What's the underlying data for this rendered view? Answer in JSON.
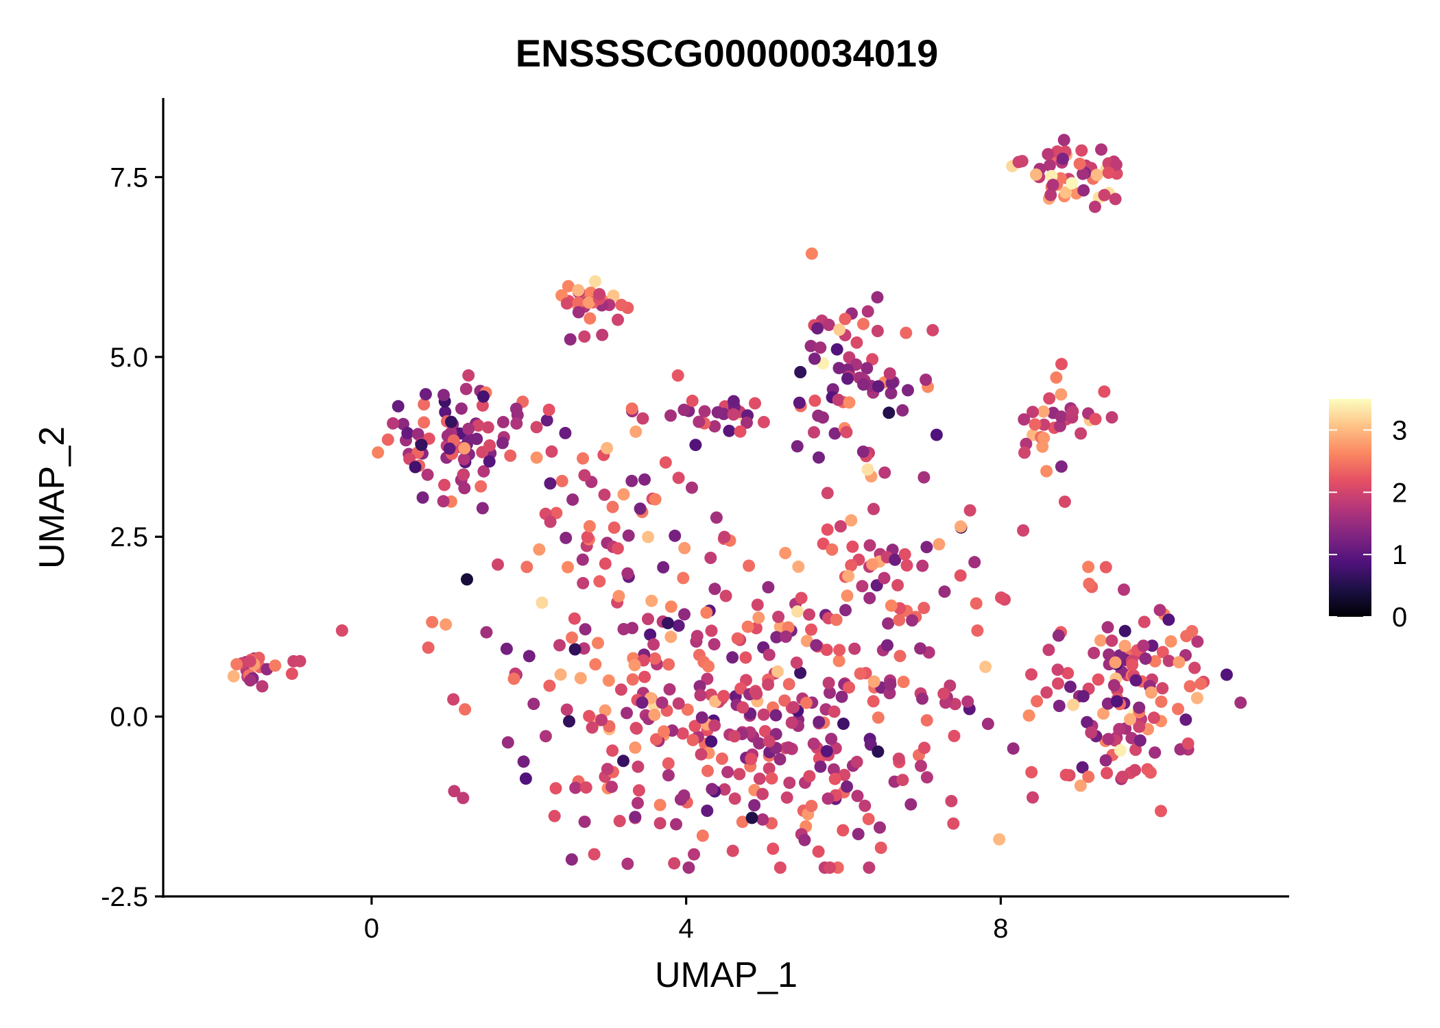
{
  "chart_data": {
    "type": "scatter",
    "title": "ENSSSCG00000034019",
    "xlabel": "UMAP_1",
    "ylabel": "UMAP_2",
    "xlim": [
      -2.65,
      11.65
    ],
    "ylim": [
      -2.5,
      8.6
    ],
    "x_ticks": [
      0,
      4,
      8
    ],
    "x_tick_labels": [
      "0",
      "4",
      "8"
    ],
    "y_ticks": [
      -2.5,
      0.0,
      2.5,
      5.0,
      7.5
    ],
    "y_tick_labels": [
      "-2.5",
      "0.0",
      "2.5",
      "5.0",
      "7.5"
    ],
    "grid": false,
    "legend": {
      "title": "",
      "position": "right",
      "min": 0,
      "max": 3.5,
      "ticks": [
        0,
        1,
        2,
        3
      ],
      "tick_labels": [
        "0",
        "1",
        "2",
        "3"
      ]
    },
    "colormap": [
      "#000004",
      "#1c1044",
      "#4f127b",
      "#812581",
      "#b5367a",
      "#e55064",
      "#fb8761",
      "#fec287",
      "#fcfdbf"
    ],
    "clusters": [
      {
        "name": "far-left",
        "cx": -1.6,
        "cy": 0.65,
        "sx": 0.15,
        "sy": 0.1,
        "n": 18,
        "mean": 2.1
      },
      {
        "name": "far-left-tail",
        "cx": -1.1,
        "cy": 0.72,
        "sx": 0.15,
        "sy": 0.06,
        "n": 4,
        "mean": 1.9
      },
      {
        "name": "left-upper",
        "cx": 1.1,
        "cy": 3.8,
        "sx": 0.45,
        "sy": 0.4,
        "n": 80,
        "mean": 1.7
      },
      {
        "name": "top-left",
        "cx": 2.8,
        "cy": 5.75,
        "sx": 0.2,
        "sy": 0.22,
        "n": 28,
        "mean": 2.2
      },
      {
        "name": "upper-center-small",
        "cx": 4.4,
        "cy": 4.2,
        "sx": 0.35,
        "sy": 0.12,
        "n": 22,
        "mean": 1.8
      },
      {
        "name": "upper-center-right",
        "cx": 6.1,
        "cy": 4.6,
        "sx": 0.45,
        "sy": 0.65,
        "n": 70,
        "mean": 1.7
      },
      {
        "name": "top-right",
        "cx": 8.9,
        "cy": 7.55,
        "sx": 0.4,
        "sy": 0.2,
        "n": 48,
        "mean": 2.4
      },
      {
        "name": "right-mid",
        "cx": 8.7,
        "cy": 4.2,
        "sx": 0.35,
        "sy": 0.35,
        "n": 32,
        "mean": 2.0
      },
      {
        "name": "center-connector",
        "cx": 3.0,
        "cy": 2.8,
        "sx": 0.6,
        "sy": 0.9,
        "n": 60,
        "mean": 1.9
      },
      {
        "name": "main-body",
        "cx": 4.7,
        "cy": 0.1,
        "sx": 1.5,
        "sy": 1.05,
        "n": 380,
        "mean": 1.95
      },
      {
        "name": "main-right-arm",
        "cx": 6.6,
        "cy": 2.1,
        "sx": 0.7,
        "sy": 0.5,
        "n": 40,
        "mean": 2.2
      },
      {
        "name": "right-lower",
        "cx": 9.6,
        "cy": 0.3,
        "sx": 0.55,
        "sy": 0.65,
        "n": 130,
        "mean": 2.0
      }
    ]
  }
}
